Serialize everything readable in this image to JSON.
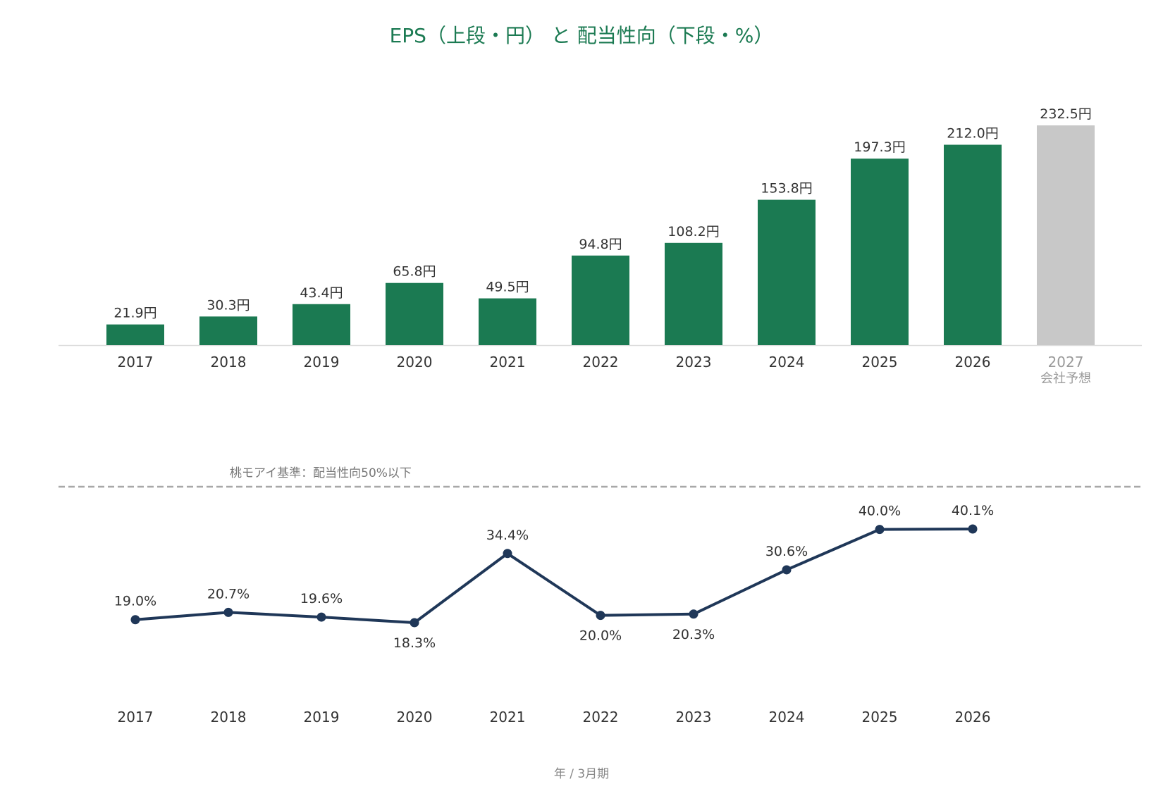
{
  "title": "EPS（上段・円） と 配当性向（下段・%）",
  "colors": {
    "title": "#1b7a52",
    "bar": "#1b7a52",
    "forecast_bar": "#c8c8c8",
    "line": "#1f3758",
    "reference_line": "#a8a8a8",
    "baseline": "#dddddd"
  },
  "chart_data": [
    {
      "type": "bar",
      "series_name": "EPS",
      "categories": [
        "2017",
        "2018",
        "2019",
        "2020",
        "2021",
        "2022",
        "2023",
        "2024",
        "2025",
        "2026",
        "2027"
      ],
      "values": [
        21.9,
        30.3,
        43.4,
        65.8,
        49.5,
        94.8,
        108.2,
        153.8,
        197.3,
        212.0,
        232.5
      ],
      "value_labels": [
        "21.9円",
        "30.3円",
        "43.4円",
        "65.8円",
        "49.5円",
        "94.8円",
        "108.2円",
        "153.8円",
        "197.3円",
        "212.0円",
        "232.5円"
      ],
      "forecast_index": 10,
      "forecast_label": "会社予想",
      "unit": "円",
      "ylim": [
        0,
        232.5
      ]
    },
    {
      "type": "line",
      "series_name": "配当性向",
      "categories": [
        "2017",
        "2018",
        "2019",
        "2020",
        "2021",
        "2022",
        "2023",
        "2024",
        "2025",
        "2026"
      ],
      "values": [
        19.0,
        20.7,
        19.6,
        18.3,
        34.4,
        20.0,
        20.3,
        30.6,
        40.0,
        40.1
      ],
      "value_labels": [
        "19.0%",
        "20.7%",
        "19.6%",
        "18.3%",
        "34.4%",
        "20.0%",
        "20.3%",
        "30.6%",
        "40.0%",
        "40.1%"
      ],
      "label_positions": [
        "above",
        "above",
        "above",
        "below",
        "above",
        "below",
        "below",
        "above",
        "above",
        "above"
      ],
      "unit": "%",
      "reference_line": {
        "value": 50,
        "label": "桃モアイ基準：配当性向50%以下",
        "style": "dashed"
      }
    }
  ],
  "footer": {
    "period_label": "年 / 3月期"
  }
}
